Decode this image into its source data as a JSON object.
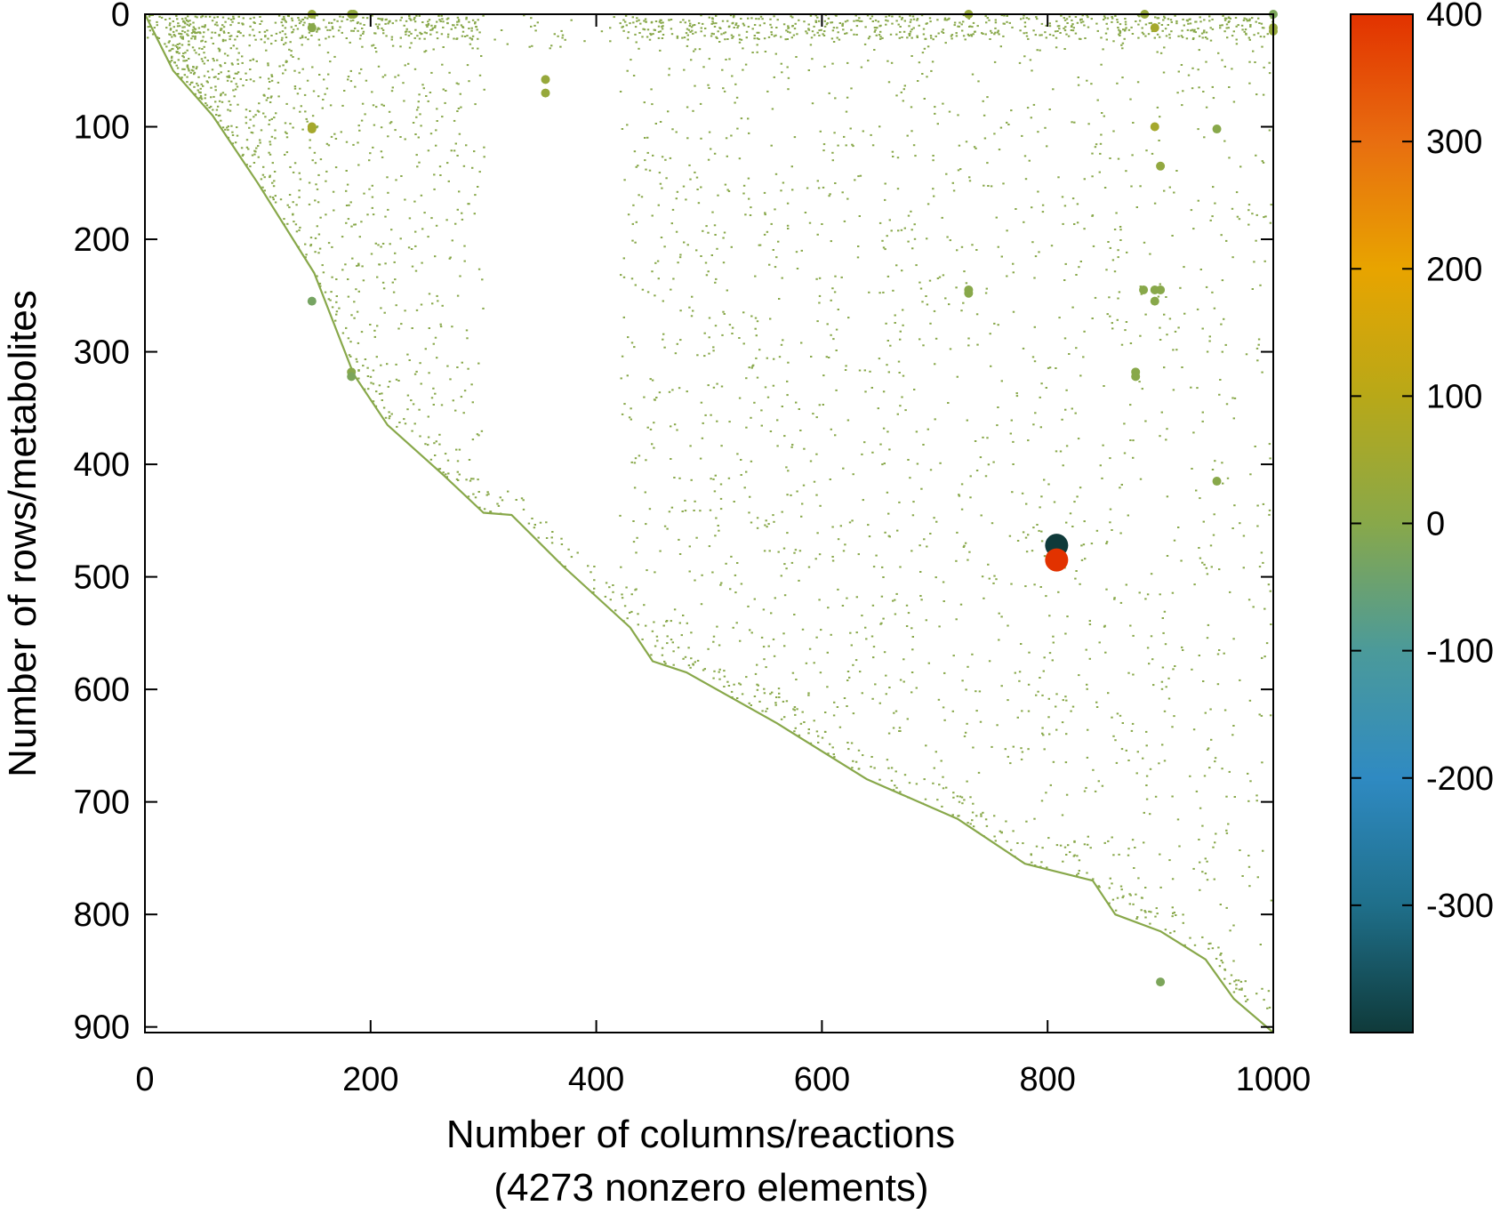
{
  "chart_data": {
    "type": "scatter",
    "subtype": "sparse-matrix-spy",
    "title": "",
    "xlabel": "Number of columns/reactions",
    "xlabel_line2": "(4273 nonzero elements)",
    "ylabel": "Number of rows/metabolites",
    "xlim": [
      0,
      1000
    ],
    "ylim": [
      905,
      0
    ],
    "y_inverted": true,
    "grid": false,
    "x_ticks": [
      0,
      200,
      400,
      600,
      800,
      1000
    ],
    "x_tick_labels": [
      "0",
      "200",
      "400",
      "600",
      "800",
      "1000"
    ],
    "y_ticks": [
      0,
      100,
      200,
      300,
      400,
      500,
      600,
      700,
      800,
      900
    ],
    "y_tick_labels": [
      "0",
      "100",
      "200",
      "300",
      "400",
      "500",
      "600",
      "700",
      "800",
      "900"
    ],
    "nonzero_count": 4273,
    "colorbar": {
      "range": [
        -400,
        400
      ],
      "ticks": [
        400,
        300,
        200,
        100,
        0,
        -100,
        -200,
        -300
      ],
      "tick_labels": [
        "400",
        "300",
        "200",
        "100",
        "0",
        "-100",
        "-200",
        "-300"
      ],
      "colors": [
        "#0f3a3a",
        "#1f6f8a",
        "#2f8ac2",
        "#4b9a9a",
        "#88a84a",
        "#b8a818",
        "#e8a400",
        "#e86e10",
        "#e23200"
      ]
    },
    "diagonal_band": [
      [
        0,
        0
      ],
      [
        25,
        50
      ],
      [
        60,
        90
      ],
      [
        100,
        150
      ],
      [
        150,
        230
      ],
      [
        185,
        320
      ],
      [
        215,
        365
      ],
      [
        265,
        410
      ],
      [
        300,
        443
      ],
      [
        325,
        445
      ],
      [
        370,
        490
      ],
      [
        430,
        545
      ],
      [
        450,
        575
      ],
      [
        480,
        585
      ],
      [
        560,
        630
      ],
      [
        640,
        680
      ],
      [
        720,
        715
      ],
      [
        780,
        755
      ],
      [
        840,
        770
      ],
      [
        860,
        800
      ],
      [
        900,
        815
      ],
      [
        940,
        840
      ],
      [
        965,
        875
      ],
      [
        1000,
        905
      ]
    ],
    "large_markers": [
      {
        "x": 808,
        "y": 472,
        "value": -400
      },
      {
        "x": 808,
        "y": 485,
        "value": 400
      }
    ],
    "medium_markers": [
      {
        "x": 148,
        "y": 0,
        "value": 30
      },
      {
        "x": 148,
        "y": 12,
        "value": 0
      },
      {
        "x": 148,
        "y": 100,
        "value": 60
      },
      {
        "x": 148,
        "y": 102,
        "value": 60
      },
      {
        "x": 148,
        "y": 255,
        "value": -30
      },
      {
        "x": 183,
        "y": 0,
        "value": 20
      },
      {
        "x": 185,
        "y": 0,
        "value": 20
      },
      {
        "x": 183,
        "y": 318,
        "value": 0
      },
      {
        "x": 183,
        "y": 322,
        "value": -20
      },
      {
        "x": 730,
        "y": 0,
        "value": 30
      },
      {
        "x": 730,
        "y": 245,
        "value": 0
      },
      {
        "x": 730,
        "y": 248,
        "value": 0
      },
      {
        "x": 878,
        "y": 318,
        "value": 0
      },
      {
        "x": 878,
        "y": 322,
        "value": 0
      },
      {
        "x": 886,
        "y": 0,
        "value": 30
      },
      {
        "x": 895,
        "y": 12,
        "value": 60
      },
      {
        "x": 895,
        "y": 100,
        "value": 60
      },
      {
        "x": 900,
        "y": 135,
        "value": 20
      },
      {
        "x": 885,
        "y": 245,
        "value": 0
      },
      {
        "x": 895,
        "y": 245,
        "value": 0
      },
      {
        "x": 895,
        "y": 255,
        "value": 0
      },
      {
        "x": 900,
        "y": 245,
        "value": 0
      },
      {
        "x": 900,
        "y": 860,
        "value": -20
      },
      {
        "x": 1000,
        "y": 0,
        "value": -20
      },
      {
        "x": 1000,
        "y": 12,
        "value": 30
      },
      {
        "x": 1000,
        "y": 15,
        "value": 30
      },
      {
        "x": 950,
        "y": 102,
        "value": 0
      },
      {
        "x": 950,
        "y": 415,
        "value": 0
      },
      {
        "x": 355,
        "y": 58,
        "value": 30
      },
      {
        "x": 355,
        "y": 70,
        "value": 30
      }
    ]
  }
}
